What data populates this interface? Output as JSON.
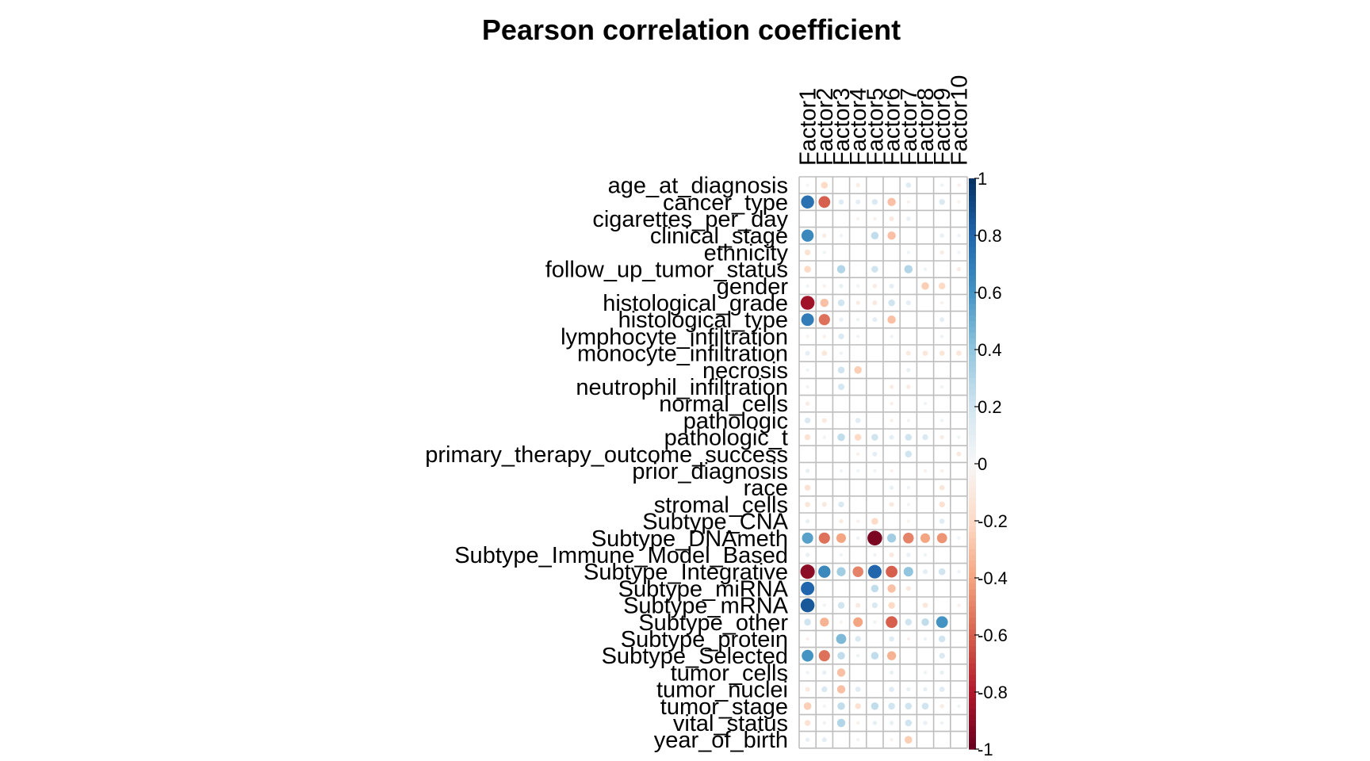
{
  "chart_data": {
    "type": "heatmap",
    "title": "Pearson correlation coefficient",
    "columns": [
      "Factor1",
      "Factor2",
      "Factor3",
      "Factor4",
      "Factor5",
      "Factor6",
      "Factor7",
      "Factor8",
      "Factor9",
      "Factor10"
    ],
    "rows": [
      "age_at_diagnosis",
      "cancer_type",
      "cigarettes_per_day",
      "clinical_stage",
      "ethnicity",
      "follow_up_tumor_status",
      "gender",
      "histological_grade",
      "histological_type",
      "lymphocyte_infiltration",
      "monocyte_infiltration",
      "necrosis",
      "neutrophil_infiltration",
      "normal_cells",
      "pathologic",
      "pathologic_t",
      "primary_therapy_outcome_success",
      "prior_diagnosis",
      "race",
      "stromal_cells",
      "Subtype_CNA",
      "Subtype_DNAmeth",
      "Subtype_Immune_Model_Based",
      "Subtype_Integrative",
      "Subtype_miRNA",
      "Subtype_mRNA",
      "Subtype_other",
      "Subtype_protein",
      "Subtype_Selected",
      "tumor_cells",
      "tumor_nuclei",
      "tumor_stage",
      "vital_status",
      "year_of_birth"
    ],
    "values": [
      [
        0.02,
        -0.2,
        0.0,
        -0.08,
        0.0,
        0.0,
        0.12,
        0.0,
        0.05,
        -0.05
      ],
      [
        0.75,
        -0.6,
        0.12,
        0.1,
        0.15,
        -0.3,
        -0.05,
        0.0,
        0.15,
        -0.03
      ],
      [
        0.0,
        0.0,
        0.0,
        -0.03,
        -0.05,
        -0.1,
        0.08,
        0.0,
        0.0,
        0.0
      ],
      [
        0.65,
        -0.08,
        0.05,
        0.0,
        0.25,
        -0.3,
        0.0,
        0.0,
        0.08,
        0.05
      ],
      [
        -0.15,
        0.05,
        0.0,
        0.0,
        0.0,
        0.0,
        0.03,
        0.0,
        -0.08,
        0.03
      ],
      [
        -0.2,
        0.0,
        0.3,
        0.0,
        0.2,
        0.0,
        0.3,
        0.05,
        0.0,
        -0.08
      ],
      [
        0.05,
        -0.05,
        0.08,
        0.03,
        -0.08,
        0.1,
        0.0,
        -0.25,
        -0.2,
        0.0
      ],
      [
        -0.85,
        -0.3,
        0.2,
        -0.08,
        -0.1,
        0.2,
        0.1,
        0.0,
        -0.03,
        0.0
      ],
      [
        0.7,
        -0.55,
        0.08,
        0.05,
        0.1,
        -0.3,
        0.0,
        0.0,
        0.1,
        0.0
      ],
      [
        -0.03,
        -0.05,
        0.15,
        0.03,
        0.0,
        0.03,
        0.0,
        0.0,
        0.05,
        0.0
      ],
      [
        0.1,
        -0.12,
        0.05,
        0.0,
        0.0,
        0.0,
        -0.1,
        -0.12,
        -0.12,
        -0.12
      ],
      [
        0.05,
        0.0,
        0.2,
        -0.25,
        0.0,
        0.0,
        0.08,
        0.0,
        0.0,
        0.0
      ],
      [
        0.03,
        0.0,
        0.18,
        0.0,
        0.0,
        -0.08,
        -0.08,
        0.0,
        0.03,
        0.0
      ],
      [
        -0.08,
        0.0,
        0.0,
        0.0,
        0.0,
        -0.05,
        0.0,
        0.03,
        0.0,
        0.0
      ],
      [
        0.15,
        -0.1,
        0.0,
        0.12,
        0.0,
        -0.05,
        0.03,
        0.0,
        0.05,
        0.0
      ],
      [
        -0.15,
        0.03,
        0.25,
        -0.2,
        0.2,
        0.1,
        0.2,
        0.15,
        -0.08,
        0.05
      ],
      [
        0.0,
        0.0,
        0.0,
        -0.05,
        0.1,
        0.0,
        0.2,
        0.0,
        0.0,
        -0.1
      ],
      [
        0.08,
        0.0,
        0.03,
        0.03,
        0.03,
        -0.05,
        0.0,
        -0.05,
        -0.05,
        0.0
      ],
      [
        -0.15,
        0.0,
        0.0,
        0.0,
        0.0,
        0.08,
        0.05,
        0.0,
        -0.12,
        0.0
      ],
      [
        -0.12,
        -0.1,
        0.15,
        0.0,
        0.0,
        -0.1,
        0.03,
        0.0,
        -0.15,
        0.0
      ],
      [
        0.08,
        0.0,
        -0.08,
        -0.05,
        -0.2,
        0.0,
        -0.03,
        0.0,
        0.12,
        0.0
      ],
      [
        0.55,
        -0.55,
        -0.4,
        0.05,
        -0.95,
        0.35,
        -0.5,
        -0.4,
        -0.45,
        0.03
      ],
      [
        0.08,
        0.0,
        0.05,
        0.0,
        0.05,
        -0.1,
        0.08,
        0.05,
        0.0,
        0.0
      ],
      [
        -0.9,
        0.65,
        0.35,
        -0.5,
        0.8,
        -0.6,
        0.4,
        0.1,
        0.2,
        0.05
      ],
      [
        0.8,
        0.0,
        0.0,
        0.0,
        0.25,
        -0.3,
        -0.1,
        0.0,
        0.0,
        0.0
      ],
      [
        0.85,
        0.03,
        0.2,
        -0.1,
        0.15,
        -0.2,
        0.0,
        -0.12,
        0.0,
        -0.05
      ],
      [
        0.2,
        -0.35,
        -0.03,
        -0.4,
        0.05,
        -0.6,
        0.2,
        0.25,
        0.6,
        0.0
      ],
      [
        -0.05,
        0.0,
        0.45,
        0.15,
        0.0,
        0.12,
        -0.05,
        0.05,
        0.2,
        0.0
      ],
      [
        0.6,
        -0.55,
        0.25,
        0.05,
        0.25,
        -0.35,
        0.0,
        0.0,
        0.15,
        0.0
      ],
      [
        0.05,
        0.08,
        -0.3,
        0.0,
        0.0,
        0.08,
        0.0,
        0.05,
        0.08,
        0.0
      ],
      [
        -0.1,
        0.15,
        -0.3,
        0.12,
        0.0,
        0.12,
        0.08,
        0.08,
        0.12,
        0.0
      ],
      [
        -0.25,
        0.03,
        0.25,
        -0.15,
        0.25,
        0.2,
        0.2,
        0.2,
        -0.08,
        0.05
      ],
      [
        -0.15,
        0.05,
        0.3,
        -0.05,
        0.08,
        0.08,
        0.2,
        0.08,
        0.05,
        0.0
      ],
      [
        0.08,
        0.1,
        0.0,
        0.03,
        0.0,
        -0.03,
        -0.25,
        0.0,
        0.0,
        0.0
      ]
    ],
    "colorbar": {
      "ticks": [
        "1",
        "0.8",
        "0.6",
        "0.4",
        "0.2",
        "0",
        "-0.2",
        "-0.4",
        "-0.6",
        "-0.8",
        "-1"
      ],
      "range": [
        -1,
        1
      ]
    },
    "colors": {
      "strong_positive": "#053061",
      "positive": "#4393C3",
      "light_positive": "#D1E5F0",
      "zero": "#F7F7F7",
      "light_negative": "#FDDBC7",
      "negative": "#D6604D",
      "strong_negative": "#67001F",
      "grid": "#BEBEBE"
    }
  }
}
